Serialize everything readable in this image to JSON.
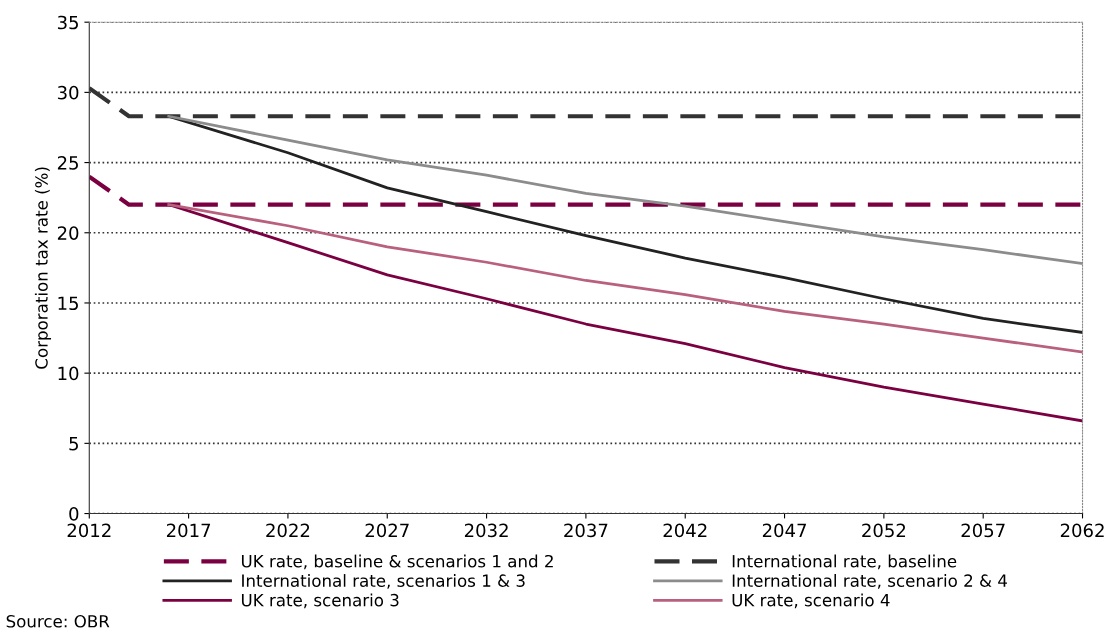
{
  "chart_data": {
    "type": "line",
    "ylabel": "Corporation tax rate (%)",
    "xlim": [
      2012,
      2062
    ],
    "xticks": [
      2012,
      2017,
      2022,
      2027,
      2032,
      2037,
      2042,
      2047,
      2052,
      2057,
      2062
    ],
    "ylim": [
      0,
      35
    ],
    "yticks": [
      0,
      5,
      10,
      15,
      20,
      25,
      30,
      35
    ],
    "grid": "y",
    "legend": "bottom",
    "marker": "none",
    "series": [
      {
        "name": "UK rate, baseline & scenarios 1 and 2",
        "color": "#7b0041",
        "line_style": "dashed",
        "x": [
          2012,
          2014,
          2062
        ],
        "values": [
          24,
          22,
          22
        ]
      },
      {
        "name": "International rate, baseline",
        "color": "#333333",
        "line_style": "dashed",
        "x": [
          2012,
          2014,
          2062
        ],
        "values": [
          30.3,
          28.3,
          28.3
        ]
      },
      {
        "name": "International rate, scenarios 1 & 3",
        "color": "#222222",
        "line_style": "solid",
        "x": [
          2016,
          2022,
          2027,
          2032,
          2037,
          2042,
          2047,
          2052,
          2057,
          2062
        ],
        "values": [
          28.3,
          25.7,
          23.2,
          21.5,
          19.8,
          18.2,
          16.8,
          15.3,
          13.9,
          12.9
        ]
      },
      {
        "name": "International rate, scenario 2 & 4",
        "color": "#8c8c8c",
        "line_style": "solid",
        "x": [
          2016,
          2022,
          2027,
          2032,
          2037,
          2042,
          2047,
          2052,
          2057,
          2062
        ],
        "values": [
          28.3,
          26.6,
          25.2,
          24.1,
          22.8,
          21.9,
          20.8,
          19.7,
          18.8,
          17.8
        ]
      },
      {
        "name": "UK rate, scenario 3",
        "color": "#7b0041",
        "line_style": "solid",
        "x": [
          2016,
          2022,
          2027,
          2032,
          2037,
          2042,
          2047,
          2052,
          2057,
          2062
        ],
        "values": [
          22,
          19.3,
          17.0,
          15.3,
          13.5,
          12.1,
          10.4,
          9.0,
          7.8,
          6.6
        ]
      },
      {
        "name": "UK rate, scenario 4",
        "color": "#b9607f",
        "line_style": "solid",
        "x": [
          2016,
          2022,
          2027,
          2032,
          2037,
          2042,
          2047,
          2052,
          2057,
          2062
        ],
        "values": [
          22,
          20.5,
          19.0,
          17.9,
          16.6,
          15.6,
          14.4,
          13.5,
          12.5,
          11.5
        ]
      }
    ],
    "annotations": [
      "Source: OBR"
    ]
  }
}
